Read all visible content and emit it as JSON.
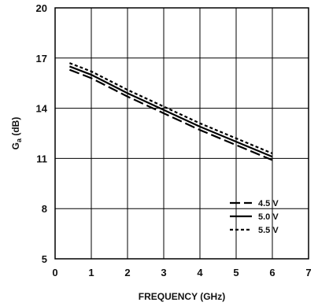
{
  "chart_data": {
    "type": "line",
    "title": "",
    "xlabel": "FREQUENCY (GHz)",
    "ylabel_main": "G",
    "ylabel_sub": "a",
    "ylabel_unit": " (dB)",
    "xlim": [
      0,
      7
    ],
    "ylim": [
      5,
      20
    ],
    "xticks": [
      "0",
      "1",
      "2",
      "3",
      "4",
      "5",
      "6",
      "7"
    ],
    "yticks": [
      "5",
      "8",
      "11",
      "14",
      "17",
      "20"
    ],
    "grid": true,
    "legend_position": "bottom-right",
    "series": [
      {
        "name": "4.5 V",
        "style": "dashed",
        "x": [
          0.4,
          1,
          2,
          3,
          4,
          5,
          6
        ],
        "y": [
          16.3,
          15.8,
          14.7,
          13.7,
          12.7,
          11.8,
          10.9
        ]
      },
      {
        "name": "5.0 V",
        "style": "solid",
        "x": [
          0.4,
          1,
          2,
          3,
          4,
          5,
          6
        ],
        "y": [
          16.5,
          16.0,
          14.9,
          13.9,
          12.9,
          12.0,
          11.1
        ]
      },
      {
        "name": "5.5 V",
        "style": "dotted",
        "x": [
          0.4,
          1,
          2,
          3,
          4,
          5,
          6
        ],
        "y": [
          16.7,
          16.2,
          15.1,
          14.1,
          13.1,
          12.2,
          11.3
        ]
      }
    ]
  }
}
